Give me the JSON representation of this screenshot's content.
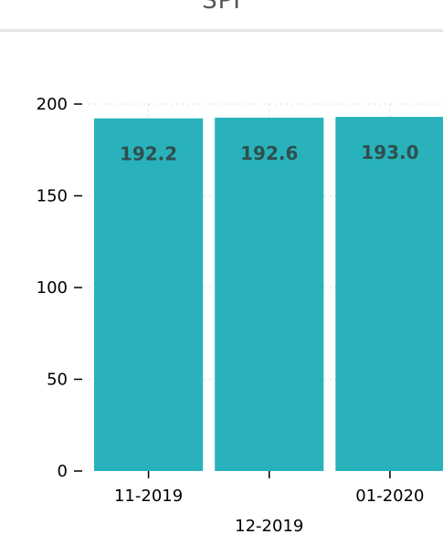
{
  "chart_data": {
    "type": "bar",
    "title": "SPI",
    "categories": [
      "11-2019",
      "12-2019",
      "01-2020"
    ],
    "values": [
      192.2,
      192.6,
      193.0
    ],
    "data_labels": [
      "192.2",
      "192.6",
      "193.0"
    ],
    "xlabel": "",
    "ylabel": "",
    "ylim": [
      0,
      200
    ],
    "yticks": [
      0,
      50,
      100,
      150,
      200
    ],
    "grid": true,
    "bar_color": "#29b2bb",
    "label_color": "#2f4f4f"
  }
}
